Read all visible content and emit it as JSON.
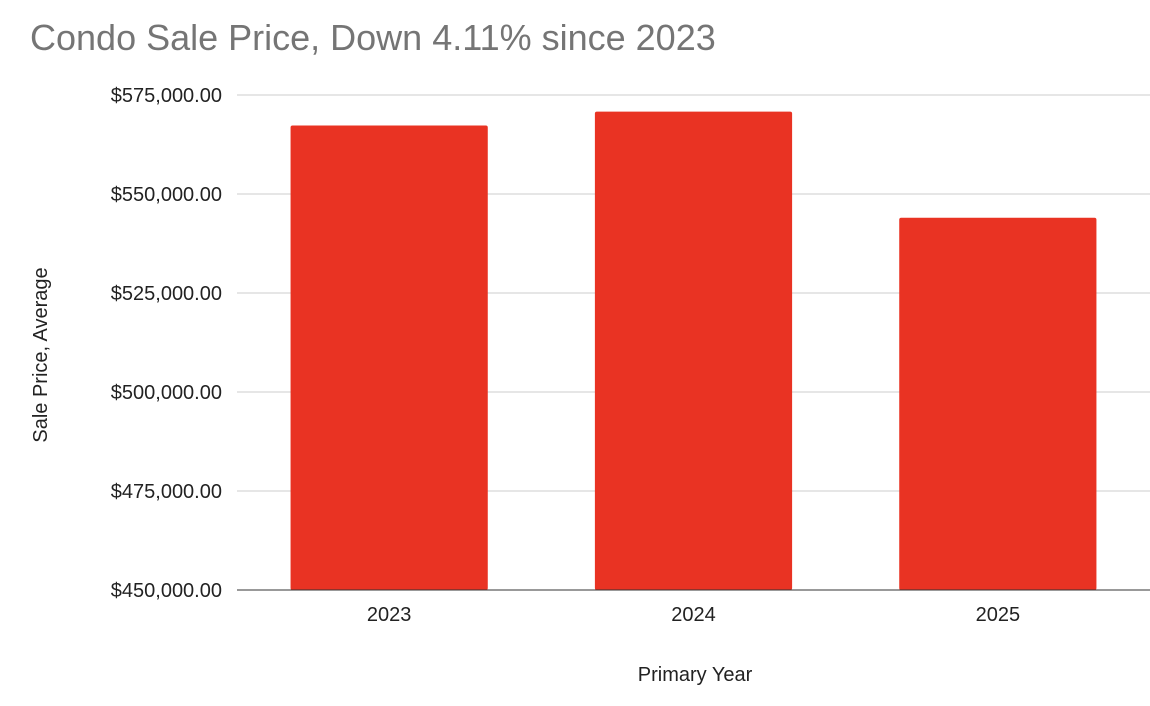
{
  "chart_data": {
    "type": "bar",
    "title": "Condo Sale Price, Down 4.11% since 2023",
    "xlabel": "Primary Year",
    "ylabel": "Sale Price, Average",
    "categories": [
      "2023",
      "2024",
      "2025"
    ],
    "values": [
      567300,
      570800,
      544000
    ],
    "ylim": [
      450000,
      575000
    ],
    "yticks": [
      450000,
      475000,
      500000,
      525000,
      550000,
      575000
    ],
    "ytick_labels": [
      "$450,000.00",
      "$475,000.00",
      "$500,000.00",
      "$525,000.00",
      "$550,000.00",
      "$575,000.00"
    ],
    "grid": true,
    "legend": "none",
    "bar_color": "#e93323",
    "grid_color": "#cccccc"
  }
}
